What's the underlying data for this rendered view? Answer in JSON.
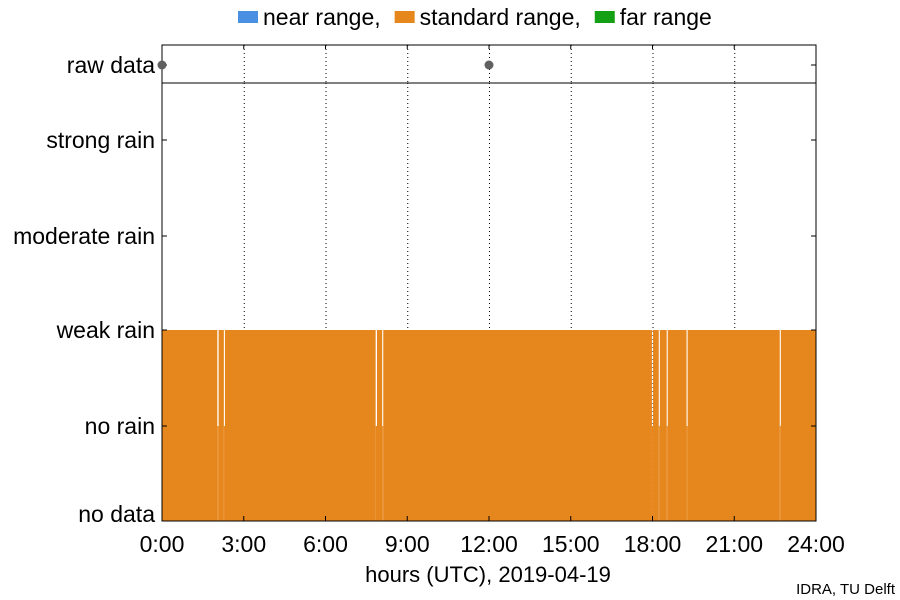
{
  "chart_data": {
    "type": "bar",
    "legend": {
      "placement": "top-center",
      "entries": [
        {
          "label": "near range,",
          "color": "#4a90e2"
        },
        {
          "label": "standard range,",
          "color": "#e6871e"
        },
        {
          "label": "far range",
          "color": "#14a014"
        }
      ]
    },
    "raw_data_row": {
      "label": "raw data",
      "marker_color": "#606060",
      "points_hours": [
        0,
        12
      ]
    },
    "y_categories": [
      "no data",
      "no rain",
      "weak rain",
      "moderate rain",
      "strong rain"
    ],
    "xlabel": "hours (UTC), 2019-04-19",
    "xlim": [
      0,
      24
    ],
    "x_ticks": [
      {
        "value": 0,
        "label": "0:00"
      },
      {
        "value": 3,
        "label": "3:00"
      },
      {
        "value": 6,
        "label": "6:00"
      },
      {
        "value": 9,
        "label": "9:00"
      },
      {
        "value": 12,
        "label": "12:00"
      },
      {
        "value": 15,
        "label": "15:00"
      },
      {
        "value": 18,
        "label": "18:00"
      },
      {
        "value": 21,
        "label": "21:00"
      },
      {
        "value": 24,
        "label": "24:00"
      }
    ],
    "grid": {
      "x": true,
      "style": "dotted"
    },
    "series": [
      {
        "name": "standard range,",
        "color": "#e6871e",
        "segments": [
          {
            "start": 0.0,
            "end": 2.03,
            "level": "weak rain"
          },
          {
            "start": 2.03,
            "end": 2.08,
            "level": "no rain"
          },
          {
            "start": 2.08,
            "end": 2.27,
            "level": "weak rain"
          },
          {
            "start": 2.27,
            "end": 2.31,
            "level": "no rain"
          },
          {
            "start": 2.31,
            "end": 7.84,
            "level": "weak rain"
          },
          {
            "start": 7.84,
            "end": 7.89,
            "level": "no rain"
          },
          {
            "start": 7.89,
            "end": 8.08,
            "level": "weak rain"
          },
          {
            "start": 8.08,
            "end": 8.12,
            "level": "no rain"
          },
          {
            "start": 8.12,
            "end": 17.98,
            "level": "weak rain"
          },
          {
            "start": 17.98,
            "end": 18.02,
            "level": "no rain"
          },
          {
            "start": 18.02,
            "end": 18.23,
            "level": "weak rain"
          },
          {
            "start": 18.23,
            "end": 18.27,
            "level": "no rain"
          },
          {
            "start": 18.27,
            "end": 18.52,
            "level": "weak rain"
          },
          {
            "start": 18.52,
            "end": 18.56,
            "level": "no rain"
          },
          {
            "start": 18.56,
            "end": 19.25,
            "level": "weak rain"
          },
          {
            "start": 19.25,
            "end": 19.29,
            "level": "no rain"
          },
          {
            "start": 19.29,
            "end": 22.67,
            "level": "weak rain"
          },
          {
            "start": 22.67,
            "end": 22.71,
            "level": "no rain"
          },
          {
            "start": 22.71,
            "end": 24.0,
            "level": "weak rain"
          }
        ]
      }
    ]
  },
  "credit": "IDRA, TU Delft"
}
